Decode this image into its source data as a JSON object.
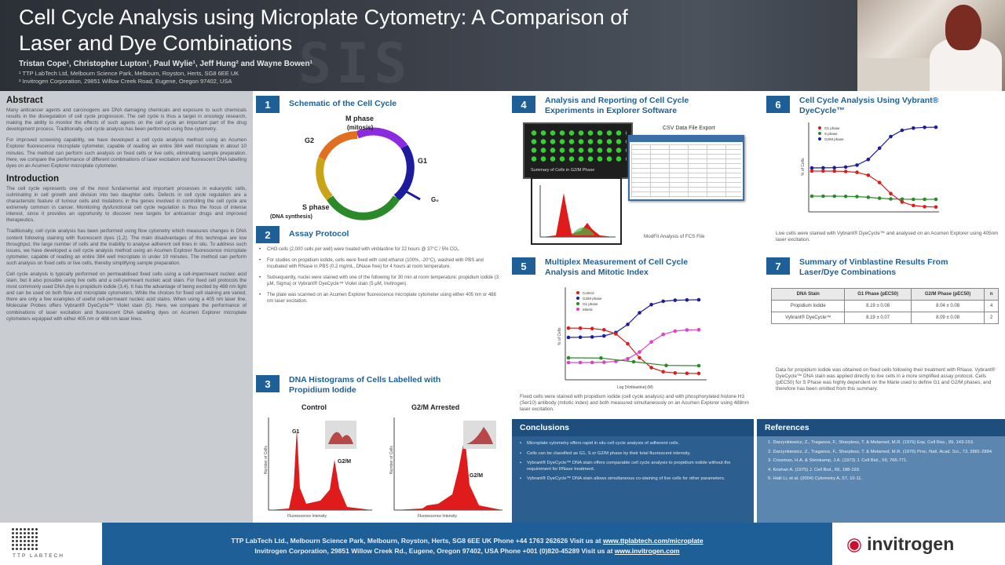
{
  "header": {
    "title_line1": "Cell Cycle Analysis using Microplate Cytometry:  A Comparison of",
    "title_line2": "Laser and Dye Combinations",
    "authors": "Tristan Cope¹, Christopher Lupton¹, Paul Wylie¹, Jeff Hung² and Wayne Bowen¹",
    "affiliation1": "¹ TTP LabTech Ltd, Melbourn Science Park, Melbourn, Royston, Herts, SG8 6EE UK",
    "affiliation2": "² Invitrogen Corporation, 29851 Willow Creek Road, Eugene, Oregon 97402, USA"
  },
  "left": {
    "abstract_title": "Abstract",
    "abstract_p1": "Many anticancer agents and carcinogens are DNA damaging chemicals and exposure to such chemicals results in the disregulation of cell cycle progression. The cell cycle is thus a target in oncology research, making the ability to monitor the effects of such agents on the cell cycle an important part of the drug development process. Traditionally, cell cycle analysis has been performed using flow cytometry.",
    "abstract_p2": "For improved screening capability, we have developed a cell cycle analysis method using an Acumen Explorer fluorescence microplate cytometer, capable of reading an entire 384 well microplate in about 10 minutes. The method can perform such analysis on fixed cells or live cells, eliminating sample preparation. Here, we compare the performance of different combinations of laser excitation and fluorescent DNA labelling dyes on an Acumen Explorer microplate cytometer.",
    "intro_title": "Introduction",
    "intro_p1": "The cell cycle represents one of the most fundamental and important processes in eukaryotic cells, culminating in cell growth and division into two daughter cells. Defects in cell cycle regulation are a characteristic feature of tumour cells and mutations in the genes involved in controlling the cell cycle are extremely common in cancer. Monitoring dysfunctional cell cycle regulation is thus the focus of intense interest, since it provides an opportunity to discover new targets for anticancer drugs and improved therapeutics.",
    "intro_p2": "Traditionally, cell cycle analysis has been performed using flow cytometry which measures changes in DNA content following staining with fluorescent dyes (1,2). The main disadvantages of this technique are low throughput, the large number of cells and the inability to analyse adherent cell lines in situ. To address such issues, we have developed a cell cycle analysis method using an Acumen Explorer fluorescence microplate cytometer, capable of reading an entire 384 well microplate in under 10 minutes. The method can perform such analysis on fixed cells or live cells, thereby simplifying sample preparation.",
    "intro_p3": "Cell cycle analysis is typically performed on permeabilised fixed cells using a cell-impermeant nucleic acid stain, but it also possible using live cells and a cell-permeant nucleic acid stain. For fixed cell protocols the most commonly used DNA dye is propidium iodide (3,4). It has the advantage of being excited by 488 nm light and can be used on both flow and microplate cytometers. While the choices for fixed cell staining are varied, there are only a few examples of useful cell-permeant nucleic acid stains. When using a 405 nm laser line, Molecular Probes offers Vybrant® DyeCycle™ Violet stain (5). Here, we compare the performance of combinations of laser excitation and fluorescent DNA labelling dyes on Acumen Explorer microplate cytometers equipped with either 405 nm or 488 nm laser lines."
  },
  "sections": {
    "s1": {
      "num": "1",
      "title": "Schematic of the Cell Cycle"
    },
    "s2": {
      "num": "2",
      "title": "Assay Protocol"
    },
    "s3": {
      "num": "3",
      "title_l1": "DNA Histograms of Cells Labelled with",
      "title_l2": "Propidium Iodide"
    },
    "s4": {
      "num": "4",
      "title_l1": "Analysis and Reporting of Cell Cycle",
      "title_l2": "Experiments in Explorer Software"
    },
    "s5": {
      "num": "5",
      "title_l1": "Multiplex Measurement of Cell Cycle",
      "title_l2": "Analysis and Mitotic Index"
    },
    "s6": {
      "num": "6",
      "title_l1": "Cell Cycle Analysis Using Vybrant®",
      "title_l2": "DyeCycle™"
    },
    "s7": {
      "num": "7",
      "title_l1": "Summary of Vinblastine Results From",
      "title_l2": "Laser/Dye Combinations"
    }
  },
  "cell_cycle": {
    "m_phase": "M phase",
    "mitosis": "(mitosis)",
    "g2": "G2",
    "g1": "G1",
    "g0": "G₀",
    "s_phase": "S phase",
    "dna_synthesis": "(DNA synthesis)"
  },
  "protocol": [
    "CHO cells (2,000 cells per well) were treated with vinblastine for 22 hours @ 37°C / 5% CO₂.",
    "For studies on propidium iodide, cells were fixed with cold ethanol (100%, -20°C), washed with PBS and incubated with RNase in PBS (0.2 mg/mL, DNase free) for 4 hours at room temperature.",
    "Subsequently, nuclei were stained with one of the following for 30 min at room temperature: propidium iodide (3 µM, Sigma) or Vybrant® DyeCycle™ Violet stain (5 µM, Invitrogen).",
    "The plate was scanned on an Acumen Explorer fluorescence microplate cytometer using either 405 nm or 488 nm laser excitation."
  ],
  "histograms": {
    "control_label": "Control",
    "arrested_label": "G2/M Arrested",
    "g1_label": "G1",
    "g2m_label": "G2/M",
    "ylabel": "Number of Cells",
    "xlabel": "Fluorescence Intensity"
  },
  "software": {
    "csv_label": "CSV Data File Export",
    "panel_label": "Summary of Cells in G2/M Phase",
    "fcs_caption": "ModFit Analysis of FCS File"
  },
  "chart5": {
    "legend": [
      "Control",
      "G2/M phase",
      "G1 phase",
      "Mitotic"
    ],
    "xlabel": "Log [Vinblastine] (M)",
    "ylabel": "% of Cells",
    "caption": "Fixed cells were stained with propidium iodide (cell cycle analysis) and with phosphorylated histone H3 (Ser10) antibody (mitotic index) and both measured simultaneously on an Acumen Explorer using 488nm laser excitation."
  },
  "chart6": {
    "legend": [
      "G1 phase",
      "S phase",
      "G2/M phase"
    ],
    "ylabel": "% of Cells",
    "caption": "Live cells were stained with Vybrant® DyeCycle™ and analysed on an Acumen Explorer using 405nm laser excitation."
  },
  "summary_table": {
    "headers": [
      "DNA Stain",
      "G1 Phase (pEC50)",
      "G2/M Phase (pEC50)",
      "n"
    ],
    "rows": [
      [
        "Propidium Iodide",
        "8.19 ± 0.08",
        "8.04 ± 0.08",
        "4"
      ],
      [
        "Vybrant® DyeCycle™",
        "8.19 ± 0.07",
        "8.09 ± 0.08",
        "2"
      ]
    ],
    "caption": "Data for propidium iodide was obtained on fixed cells following their treatment with RNase. Vybrant® DyeCycle™ DNA stain was applied directly to live cells in a more simplified assay protocol. Cells (pEC50) for S Phase was highly dependent on the Marie used to define G1 and G2/M phases, and therefore has been omitted from this summary."
  },
  "conclusions": {
    "title": "Conclusions",
    "items": [
      "Microplate cytometry offers rapid in situ cell cycle analysis of adherent cells.",
      "Cells can be classified as G1, S or G2/M phase by their total fluorescent intensity.",
      "Vybrant® DyeCycle™ DNA stain offers comparable cell cycle analysis to propidium iodide without the requirement for RNase treatment.",
      "Vybrant® DyeCycle™ DNA stain allows simultaneous co-staining of live cells for other parameters."
    ]
  },
  "references": {
    "title": "References",
    "items": [
      "1. Darzynkiewicz, Z., Traganos, F., Sharpless, T. & Melamed, M.R. (1976) Exp. Cell Res., 99, 143-153.",
      "2. Darzynkiewicz, Z., Traganos, F., Sharpless, T. & Melamed, M.R. (1976) Proc. Natl. Acad. Sci., 73, 2881-2884.",
      "3. Crissman, H.A. & Steinkamp, J.A. (1973) J. Cell Biol., 59, 766-771.",
      "4. Krishan A. (1975) J. Cell Biol., 66, 188-193.",
      "5. Haili Li, et al. (2004) Cytometry A, 57, 10-11."
    ]
  },
  "footer": {
    "line1_pre": "TTP LabTech Ltd., Melbourn Science Park, Melbourn, Royston, Herts, SG8 6EE UK  Phone +44 1763 262626  Visit us at ",
    "line1_link": "www.ttplabtech.com/microplate",
    "line2_pre": "Invitrogen Corporation, 29851 Willow Creek Rd., Eugene, Oregon 97402, USA  Phone +001 (0)820-45289 Visit us at ",
    "line2_link": "www.invitrogen.com",
    "ttp_logo_text": "TTP LABTECH",
    "invitrogen_logo_text": "invitrogen"
  },
  "colors": {
    "accent_blue": "#1f5f97",
    "red": "#d81e1e",
    "green": "#2a8a2a",
    "magenta": "#e040c8",
    "navy": "#1c1c9c"
  }
}
